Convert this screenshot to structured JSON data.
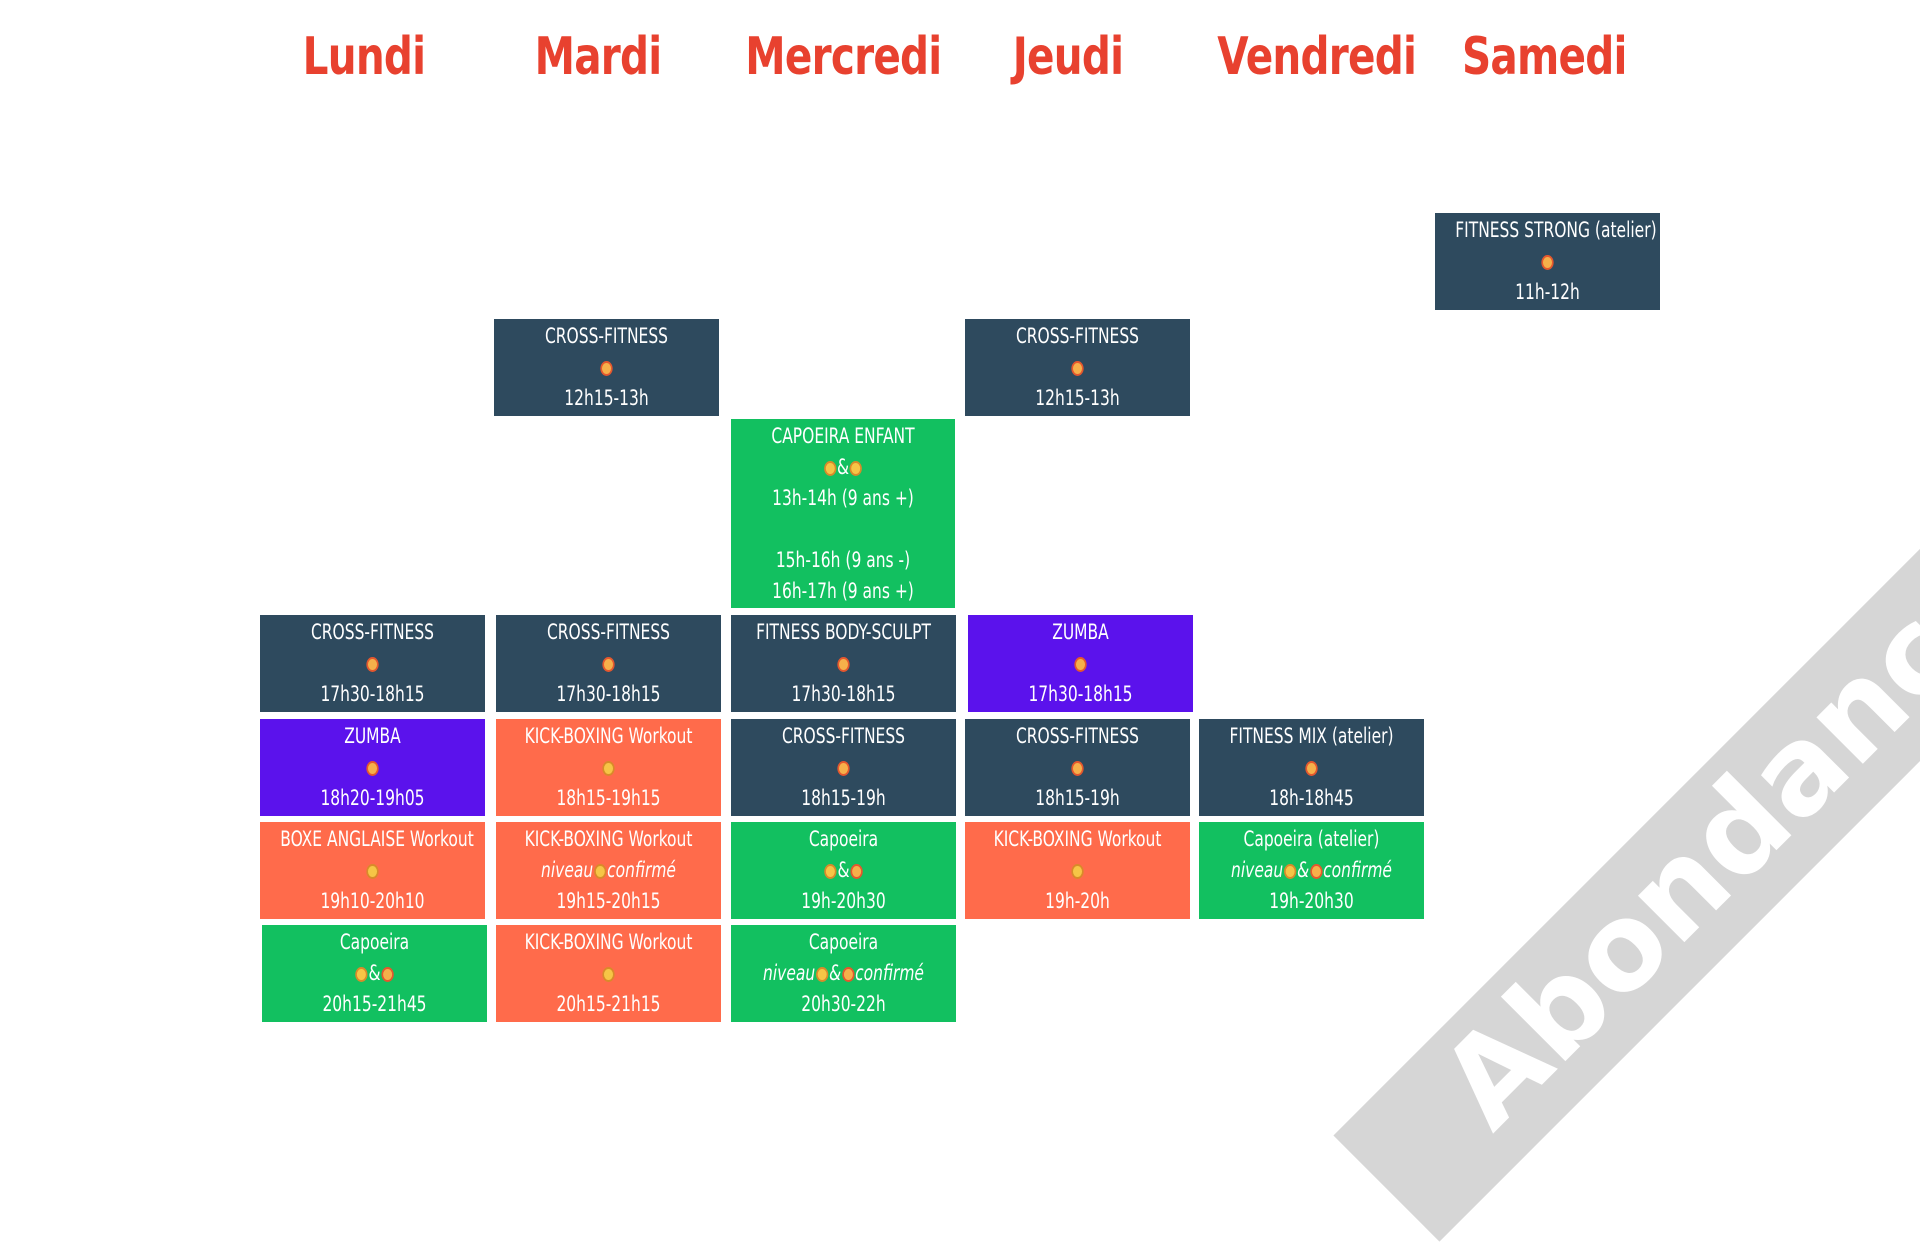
{
  "days": [
    "Lundi",
    "Mardi",
    "Mercredi",
    "Jeudi",
    "Vendredi",
    "Samedi"
  ],
  "colors": {
    "day_title": "#e8412f",
    "dark": "#2e4a5e",
    "green": "#12c060",
    "orange": "#ff6b4b",
    "purple": "#5b12ec"
  },
  "watermark": "Abondance",
  "sessions": [
    {
      "id": "sam-fitness-strong",
      "name": "FITNESS STRONG (atelier)",
      "coach": "girl",
      "time": "11h-12h"
    },
    {
      "id": "mar-cross-1",
      "name": "CROSS-FITNESS",
      "coach": "girl",
      "time": "12h15-13h"
    },
    {
      "id": "jeu-cross-1",
      "name": "CROSS-FITNESS",
      "coach": "girl",
      "time": "12h15-13h"
    },
    {
      "id": "mer-capoeira-enfant",
      "name": "CAPOEIRA ENFANT",
      "coaches": "boy&boy2",
      "time1": "13h-14h (9 ans +)",
      "time2": "15h-16h (9 ans -)",
      "time3": "16h-17h (9 ans +)"
    },
    {
      "id": "lun-cross",
      "name": "CROSS-FITNESS",
      "coach": "girl",
      "time": "17h30-18h15"
    },
    {
      "id": "mar-cross-2",
      "name": "CROSS-FITNESS",
      "coach": "girl",
      "time": "17h30-18h15"
    },
    {
      "id": "mer-bodysculpt",
      "name": "FITNESS BODY-SCULPT",
      "coach": "girl",
      "time": "17h30-18h15"
    },
    {
      "id": "jeu-zumba",
      "name": "ZUMBA",
      "coach": "girl",
      "time": "17h30-18h15"
    },
    {
      "id": "lun-zumba",
      "name": "ZUMBA",
      "coach": "girl",
      "time": "18h20-19h05"
    },
    {
      "id": "mar-kick-1",
      "name": "KICK-BOXING Workout",
      "coach": "boy",
      "time": "18h15-19h15"
    },
    {
      "id": "mer-cross",
      "name": "CROSS-FITNESS",
      "coach": "girl",
      "time": "18h15-19h"
    },
    {
      "id": "jeu-cross-2",
      "name": "CROSS-FITNESS",
      "coach": "girl",
      "time": "18h15-19h"
    },
    {
      "id": "ven-fitness-mix",
      "name": "FITNESS MIX (atelier)",
      "coach": "girl",
      "time": "18h-18h45"
    },
    {
      "id": "lun-boxe",
      "name": "BOXE ANGLAISE Workout",
      "coach": "boy",
      "time": "19h10-20h10"
    },
    {
      "id": "mar-kick-2",
      "name": "KICK-BOXING Workout",
      "level1": "niveau",
      "level2": "confirmé",
      "time": "19h15-20h15"
    },
    {
      "id": "mer-capoeira-1",
      "name": "Capoeira",
      "amp": "&",
      "time": "19h-20h30"
    },
    {
      "id": "jeu-kick",
      "name": "KICK-BOXING Workout",
      "coach": "boy",
      "time": "19h-20h"
    },
    {
      "id": "ven-capoeira",
      "name": "Capoeira (atelier)",
      "level1": "niveau",
      "amp": "&",
      "level2": "confirmé",
      "time": "19h-20h30"
    },
    {
      "id": "lun-capoeira",
      "name": "Capoeira",
      "amp": "&",
      "time": "20h15-21h45"
    },
    {
      "id": "mar-kick-3",
      "name": "KICK-BOXING Workout",
      "coach": "boy",
      "time": "20h15-21h15"
    },
    {
      "id": "mer-capoeira-2",
      "name": "Capoeira",
      "level1": "niveau",
      "amp": "&",
      "level2": "confirmé",
      "time": "20h30-22h"
    }
  ]
}
